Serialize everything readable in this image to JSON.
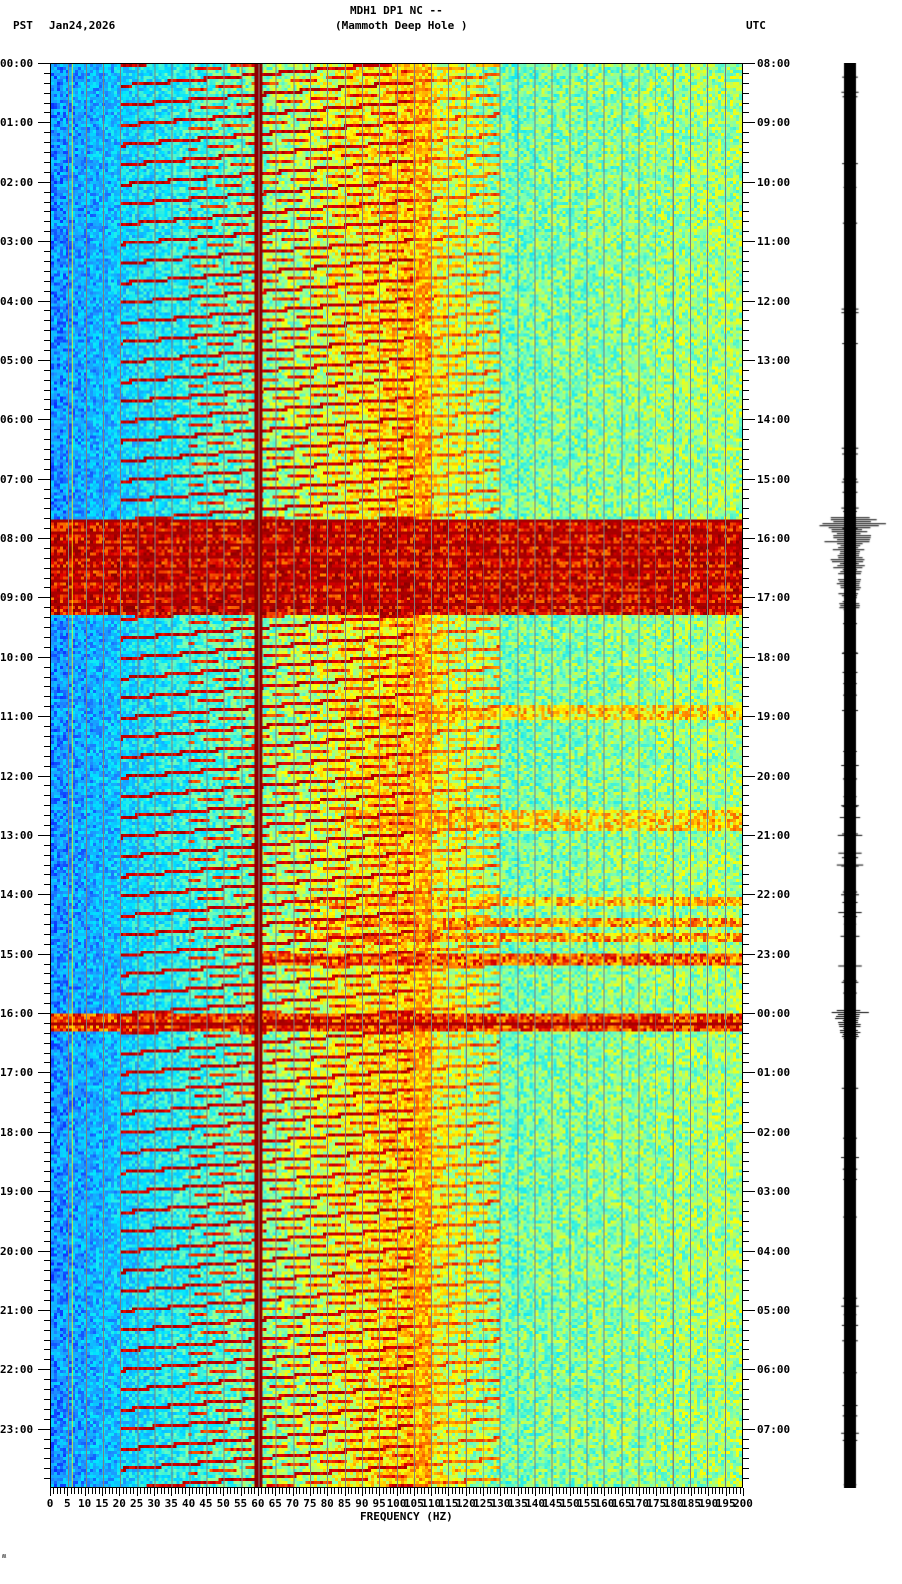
{
  "header": {
    "station_line": "MDH1 DP1 NC --",
    "station_name": "(Mammoth Deep Hole )",
    "left_timezone": "PST",
    "date": "Jan24,2026",
    "right_timezone": "UTC"
  },
  "footer": {
    "corner_mark": "ʍ"
  },
  "colors": {
    "background": "#ffffff",
    "gridline": "#808080",
    "axis": "#000000",
    "colormap": [
      "#0000ff",
      "#1e90ff",
      "#00e5ff",
      "#7fffb0",
      "#ffff00",
      "#ff8000",
      "#e00000",
      "#8b0000"
    ]
  },
  "chart_data": {
    "type": "heatmap",
    "subtype": "spectrogram",
    "title": "MDH1 DP1 NC -- (Mammoth Deep Hole )",
    "xlabel": "FREQUENCY (HZ)",
    "ylabel_left": "PST",
    "ylabel_right": "UTC",
    "xlim": [
      0,
      200
    ],
    "x_ticks": [
      0,
      5,
      10,
      15,
      20,
      25,
      30,
      35,
      40,
      45,
      50,
      55,
      60,
      65,
      70,
      75,
      80,
      85,
      90,
      95,
      100,
      105,
      110,
      115,
      120,
      125,
      130,
      135,
      140,
      145,
      150,
      155,
      160,
      165,
      170,
      175,
      180,
      185,
      190,
      195,
      200
    ],
    "x_tick_labels": [
      "0",
      "5",
      "10",
      "15",
      "20",
      "25",
      "30",
      "35",
      "40",
      "45",
      "50",
      "55",
      "60",
      "65",
      "70",
      "75",
      "80",
      "85",
      "90",
      "95",
      "100",
      "105",
      "110",
      "115",
      "120",
      "125",
      "130",
      "135",
      "140",
      "145",
      "150",
      "155",
      "160",
      "165",
      "170",
      "175",
      "180",
      "185",
      "190",
      "195",
      "200"
    ],
    "y_left_labels": [
      "00:00",
      "01:00",
      "02:00",
      "03:00",
      "04:00",
      "05:00",
      "06:00",
      "07:00",
      "08:00",
      "09:00",
      "10:00",
      "11:00",
      "12:00",
      "13:00",
      "14:00",
      "15:00",
      "16:00",
      "17:00",
      "18:00",
      "19:00",
      "20:00",
      "21:00",
      "22:00",
      "23:00"
    ],
    "y_right_labels": [
      "08:00",
      "09:00",
      "10:00",
      "11:00",
      "12:00",
      "13:00",
      "14:00",
      "15:00",
      "16:00",
      "17:00",
      "18:00",
      "19:00",
      "20:00",
      "21:00",
      "22:00",
      "23:00",
      "00:00",
      "01:00",
      "02:00",
      "03:00",
      "04:00",
      "05:00",
      "06:00",
      "07:00"
    ],
    "y_minor_ticks_per_hour": 6,
    "grid": true,
    "grid_every_hz": 5,
    "persistent_lines_hz": [
      6,
      60,
      120,
      180
    ],
    "strong_line_hz": 60,
    "chirp_pattern": {
      "description": "repeating diagonal harmonic sweeps rising with frequency",
      "start_hz": 20,
      "end_hz": 120,
      "period_minutes": 20
    },
    "events": [
      {
        "start_hour": 7.65,
        "end_hour": 9.3,
        "label": "broadband noise burst",
        "max_hz": 200,
        "intensity": 0.95
      },
      {
        "start_hour": 10.8,
        "end_hour": 11.05,
        "label": "band 85-180Hz",
        "min_hz": 85,
        "max_hz": 200,
        "intensity": 0.6
      },
      {
        "start_hour": 12.55,
        "end_hour": 12.95,
        "label": "band 85-180Hz",
        "min_hz": 85,
        "max_hz": 200,
        "intensity": 0.6
      },
      {
        "start_hour": 14.05,
        "end_hour": 14.2,
        "label": "band",
        "min_hz": 70,
        "max_hz": 200,
        "intensity": 0.65
      },
      {
        "start_hour": 14.4,
        "end_hour": 14.55,
        "label": "band",
        "min_hz": 70,
        "max_hz": 200,
        "intensity": 0.7
      },
      {
        "start_hour": 14.65,
        "end_hour": 14.8,
        "label": "band",
        "min_hz": 70,
        "max_hz": 200,
        "intensity": 0.7
      },
      {
        "start_hour": 15.0,
        "end_hour": 15.2,
        "label": "band",
        "min_hz": 60,
        "max_hz": 200,
        "intensity": 0.8
      },
      {
        "start_hour": 16.0,
        "end_hour": 16.3,
        "label": "broadband noise burst",
        "max_hz": 200,
        "intensity": 0.85
      }
    ],
    "seismogram": {
      "bursts": [
        {
          "hour": 7.65,
          "end_hour": 9.2,
          "amplitude": 1.0
        },
        {
          "hour": 15.95,
          "end_hour": 16.4,
          "amplitude": 0.95
        }
      ],
      "minor_spikes_hours": [
        12.5,
        12.7,
        13.0,
        13.3,
        13.5,
        14.0,
        14.3,
        14.7,
        15.2
      ]
    }
  }
}
